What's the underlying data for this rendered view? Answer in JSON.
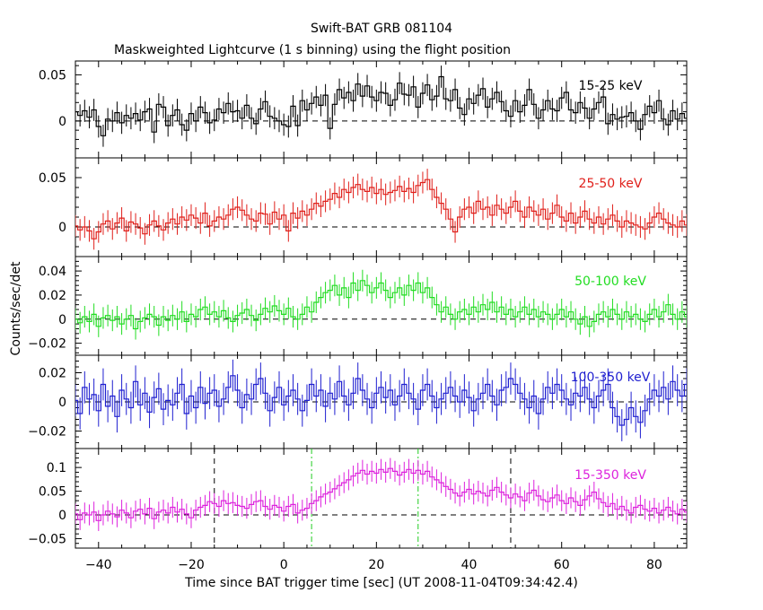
{
  "chart_data": {
    "type": "line",
    "title": "Swift-BAT GRB 081104",
    "subtitle": "Maskweighted Lightcurve (1 s binning) using the flight position",
    "xlabel": "Time since BAT trigger time [sec] (UT 2008-11-04T09:34:42.4)",
    "ylabel": "Counts/sec/det",
    "xlim": [
      -45,
      87
    ],
    "x_ticks": [
      -40,
      -20,
      0,
      20,
      40,
      60,
      80
    ],
    "panels": [
      {
        "band": "15-25 keV",
        "color": "#000000",
        "ylim": [
          -0.04,
          0.065
        ],
        "y_ticks": [
          0,
          0.05
        ],
        "y_tick_labels": [
          "0",
          "0.05"
        ],
        "err": 0.012,
        "values": [
          0.01,
          0.006,
          0.011,
          0.004,
          0.012,
          -0.006,
          -0.016,
          0.002,
          0.0,
          0.009,
          -0.002,
          0.006,
          0.003,
          0.008,
          0.001,
          0.01,
          0.013,
          -0.012,
          0.018,
          0.015,
          -0.005,
          0.006,
          0.012,
          -0.004,
          -0.01,
          0.008,
          0.0,
          0.015,
          0.009,
          -0.002,
          0.001,
          0.013,
          0.009,
          0.019,
          0.01,
          0.011,
          0.003,
          0.017,
          0.003,
          -0.003,
          0.013,
          0.021,
          0.005,
          0.003,
          0.0,
          -0.004,
          -0.006,
          0.016,
          -0.005,
          0.022,
          0.012,
          0.019,
          0.026,
          0.017,
          0.028,
          -0.008,
          0.018,
          0.034,
          0.025,
          0.031,
          0.022,
          0.04,
          0.027,
          0.038,
          0.026,
          0.022,
          0.031,
          0.03,
          0.017,
          0.023,
          0.041,
          0.029,
          0.028,
          0.037,
          0.015,
          0.03,
          0.039,
          0.023,
          0.027,
          0.048,
          0.024,
          0.022,
          0.034,
          0.014,
          0.007,
          0.024,
          0.019,
          0.028,
          0.035,
          0.015,
          0.024,
          0.031,
          0.021,
          0.011,
          0.005,
          0.022,
          0.01,
          0.017,
          0.034,
          0.018,
          0.003,
          0.012,
          0.022,
          0.013,
          0.011,
          0.025,
          0.031,
          0.012,
          0.009,
          0.02,
          0.014,
          0.003,
          0.013,
          0.02,
          0.026,
          -0.003,
          0.007,
          0.002,
          0.004,
          0.005,
          0.009,
          0.0,
          -0.009,
          0.007,
          0.016,
          0.009,
          0.022,
          0.002,
          -0.004,
          0.011,
          0.002,
          0.008,
          0.003,
          0.011,
          -0.002,
          0.006,
          0.003,
          0.002,
          0.004,
          0.001
        ]
      },
      {
        "band": "25-50 keV",
        "color": "#e0201b",
        "ylim": [
          -0.03,
          0.07
        ],
        "y_ticks": [
          0,
          0.05
        ],
        "y_tick_labels": [
          "0",
          "0.05"
        ],
        "err": 0.011,
        "values": [
          0.001,
          -0.003,
          0.0,
          -0.004,
          -0.012,
          -0.005,
          0.003,
          0.006,
          -0.002,
          0.004,
          0.009,
          -0.004,
          0.005,
          0.003,
          -0.001,
          -0.007,
          0.002,
          0.006,
          0.001,
          -0.003,
          0.004,
          0.008,
          0.003,
          0.01,
          0.007,
          0.012,
          0.009,
          0.004,
          0.014,
          0.001,
          0.006,
          0.01,
          0.008,
          0.012,
          0.018,
          0.02,
          0.017,
          0.012,
          0.008,
          0.006,
          0.014,
          0.013,
          0.003,
          0.015,
          0.008,
          0.012,
          -0.004,
          0.014,
          0.009,
          0.016,
          0.012,
          0.018,
          0.024,
          0.021,
          0.026,
          0.028,
          0.034,
          0.03,
          0.038,
          0.035,
          0.04,
          0.043,
          0.038,
          0.036,
          0.04,
          0.034,
          0.038,
          0.033,
          0.035,
          0.037,
          0.041,
          0.036,
          0.039,
          0.035,
          0.042,
          0.045,
          0.048,
          0.038,
          0.03,
          0.024,
          0.018,
          0.008,
          -0.005,
          0.01,
          0.018,
          0.02,
          0.014,
          0.026,
          0.018,
          0.02,
          0.012,
          0.022,
          0.018,
          0.014,
          0.02,
          0.026,
          0.016,
          0.01,
          0.02,
          0.016,
          0.012,
          0.018,
          0.008,
          0.014,
          0.022,
          0.01,
          0.006,
          0.014,
          0.004,
          0.01,
          0.016,
          0.008,
          0.004,
          0.01,
          0.003,
          0.008,
          0.012,
          0.006,
          0.0,
          0.006,
          0.004,
          0.002,
          0.0,
          -0.002,
          0.004,
          0.01,
          0.014,
          0.008,
          0.004,
          0.002,
          0.0,
          0.006,
          0.002,
          -0.003,
          0.004,
          0.0,
          -0.002,
          0.002,
          0.0,
          -0.001,
          0.002
        ]
      },
      {
        "band": "50-100 keV",
        "color": "#22dd22",
        "ylim": [
          -0.03,
          0.052
        ],
        "y_ticks": [
          -0.02,
          0,
          0.02,
          0.04
        ],
        "y_tick_labels": [
          "−0.02",
          "0",
          "0.02",
          "0.04"
        ],
        "err": 0.009,
        "values": [
          0.0,
          -0.003,
          0.002,
          -0.002,
          0.004,
          -0.006,
          0.001,
          0.003,
          -0.001,
          0.002,
          -0.004,
          0.0,
          0.003,
          -0.008,
          -0.002,
          0.001,
          0.004,
          0.002,
          -0.005,
          0.002,
          -0.001,
          0.003,
          0.0,
          0.006,
          -0.002,
          0.004,
          0.002,
          0.008,
          0.01,
          0.004,
          0.006,
          0.002,
          0.007,
          0.001,
          -0.002,
          0.003,
          0.005,
          0.008,
          0.003,
          -0.001,
          0.004,
          0.009,
          0.006,
          0.011,
          0.007,
          0.004,
          0.009,
          0.002,
          0.0,
          0.004,
          0.01,
          0.006,
          0.014,
          0.018,
          0.022,
          0.024,
          0.028,
          0.02,
          0.026,
          0.018,
          0.03,
          0.024,
          0.032,
          0.028,
          0.022,
          0.026,
          0.03,
          0.024,
          0.018,
          0.022,
          0.026,
          0.02,
          0.028,
          0.024,
          0.03,
          0.022,
          0.026,
          0.018,
          0.012,
          0.006,
          0.01,
          0.004,
          0.0,
          0.006,
          0.008,
          0.004,
          0.01,
          0.006,
          0.012,
          0.008,
          0.014,
          0.006,
          0.01,
          0.004,
          0.008,
          0.002,
          0.006,
          0.01,
          0.004,
          0.008,
          0.002,
          0.006,
          0.004,
          0.0,
          0.004,
          0.008,
          0.002,
          0.006,
          0.0,
          -0.004,
          0.002,
          -0.006,
          -0.002,
          0.004,
          0.006,
          0.002,
          0.008,
          0.004,
          0.0,
          0.006,
          0.002,
          0.004,
          0.0,
          -0.002,
          0.004,
          0.008,
          0.002,
          0.006,
          0.012,
          0.004,
          0.0,
          0.006,
          0.002,
          0.01,
          0.004,
          0.008,
          0.002,
          0.006,
          0.0,
          0.004,
          0.002
        ]
      },
      {
        "band": "100-350 keV",
        "color": "#1f1fd0",
        "ylim": [
          -0.032,
          0.032
        ],
        "y_ticks": [
          -0.02,
          0,
          0.02
        ],
        "y_tick_labels": [
          "−0.02",
          "0",
          "0.02"
        ],
        "err": 0.011,
        "values": [
          0.001,
          -0.008,
          0.01,
          0.002,
          0.005,
          -0.006,
          0.012,
          -0.003,
          0.004,
          -0.01,
          0.008,
          0.002,
          -0.004,
          0.014,
          -0.002,
          0.006,
          -0.007,
          0.003,
          0.009,
          -0.005,
          0.001,
          -0.002,
          0.006,
          0.012,
          -0.008,
          0.004,
          -0.004,
          0.01,
          -0.001,
          0.006,
          0.008,
          -0.003,
          0.002,
          0.01,
          0.018,
          0.008,
          -0.004,
          0.005,
          0.002,
          0.012,
          0.016,
          0.006,
          -0.006,
          0.003,
          0.01,
          -0.002,
          0.004,
          0.008,
          0.002,
          -0.006,
          0.001,
          0.012,
          0.004,
          0.008,
          -0.003,
          0.006,
          0.002,
          0.014,
          0.004,
          -0.002,
          0.006,
          0.016,
          0.008,
          0.002,
          -0.004,
          0.006,
          0.01,
          0.003,
          0.008,
          -0.002,
          0.004,
          0.012,
          0.006,
          0.002,
          -0.005,
          0.008,
          0.012,
          0.004,
          -0.004,
          0.002,
          0.006,
          0.01,
          0.004,
          0.0,
          0.008,
          0.003,
          -0.006,
          0.002,
          0.006,
          0.012,
          0.004,
          -0.002,
          0.008,
          0.01,
          0.016,
          0.012,
          0.006,
          0.002,
          -0.004,
          0.004,
          -0.008,
          0.002,
          0.01,
          0.006,
          0.012,
          0.008,
          0.002,
          -0.002,
          0.006,
          0.004,
          0.01,
          0.002,
          -0.004,
          0.004,
          0.008,
          0.012,
          -0.004,
          -0.01,
          -0.016,
          -0.012,
          -0.004,
          -0.01,
          -0.014,
          -0.006,
          0.002,
          0.008,
          0.004,
          0.01,
          0.002,
          0.014,
          0.008,
          0.004,
          0.012,
          0.006,
          0.002,
          0.01,
          0.016,
          0.008,
          0.012,
          0.018,
          0.014
        ]
      },
      {
        "band": "15-350 keV",
        "color": "#dd22dd",
        "ylim": [
          -0.07,
          0.14
        ],
        "y_ticks": [
          -0.05,
          0,
          0.05,
          0.1
        ],
        "y_tick_labels": [
          "−0.05",
          "0",
          "0.05",
          "0.1"
        ],
        "err": 0.022,
        "markers_black": [
          -15,
          49
        ],
        "markers_green": [
          6,
          29
        ],
        "values": [
          0.002,
          -0.01,
          0.004,
          0.0,
          0.006,
          -0.012,
          0.0,
          0.008,
          0.002,
          -0.004,
          0.01,
          0.004,
          -0.006,
          0.008,
          0.012,
          0.002,
          0.014,
          -0.008,
          0.006,
          0.01,
          0.004,
          0.016,
          0.006,
          0.012,
          0.002,
          -0.006,
          0.01,
          0.016,
          0.02,
          0.028,
          0.024,
          0.018,
          0.03,
          0.024,
          0.026,
          0.02,
          0.018,
          0.014,
          0.022,
          0.028,
          0.03,
          0.018,
          0.012,
          0.02,
          0.016,
          0.008,
          0.018,
          0.022,
          0.004,
          0.01,
          0.014,
          0.024,
          0.03,
          0.038,
          0.044,
          0.048,
          0.055,
          0.062,
          0.068,
          0.074,
          0.082,
          0.088,
          0.094,
          0.086,
          0.092,
          0.088,
          0.096,
          0.09,
          0.098,
          0.092,
          0.084,
          0.09,
          0.096,
          0.088,
          0.094,
          0.086,
          0.092,
          0.08,
          0.074,
          0.068,
          0.06,
          0.054,
          0.046,
          0.04,
          0.048,
          0.054,
          0.044,
          0.05,
          0.046,
          0.04,
          0.052,
          0.058,
          0.048,
          0.042,
          0.036,
          0.044,
          0.038,
          0.03,
          0.046,
          0.052,
          0.04,
          0.032,
          0.028,
          0.036,
          0.042,
          0.03,
          0.024,
          0.036,
          0.028,
          0.02,
          0.032,
          0.04,
          0.048,
          0.034,
          0.026,
          0.018,
          0.024,
          0.012,
          0.018,
          0.01,
          0.004,
          0.016,
          0.02,
          0.012,
          0.008,
          0.014,
          0.004,
          0.01,
          0.016,
          0.008,
          0.002,
          0.012,
          0.006,
          -0.002,
          0.01,
          0.014,
          0.006,
          0.01,
          0.004,
          0.008,
          0.002,
          0.006,
          0.002
        ]
      }
    ]
  }
}
